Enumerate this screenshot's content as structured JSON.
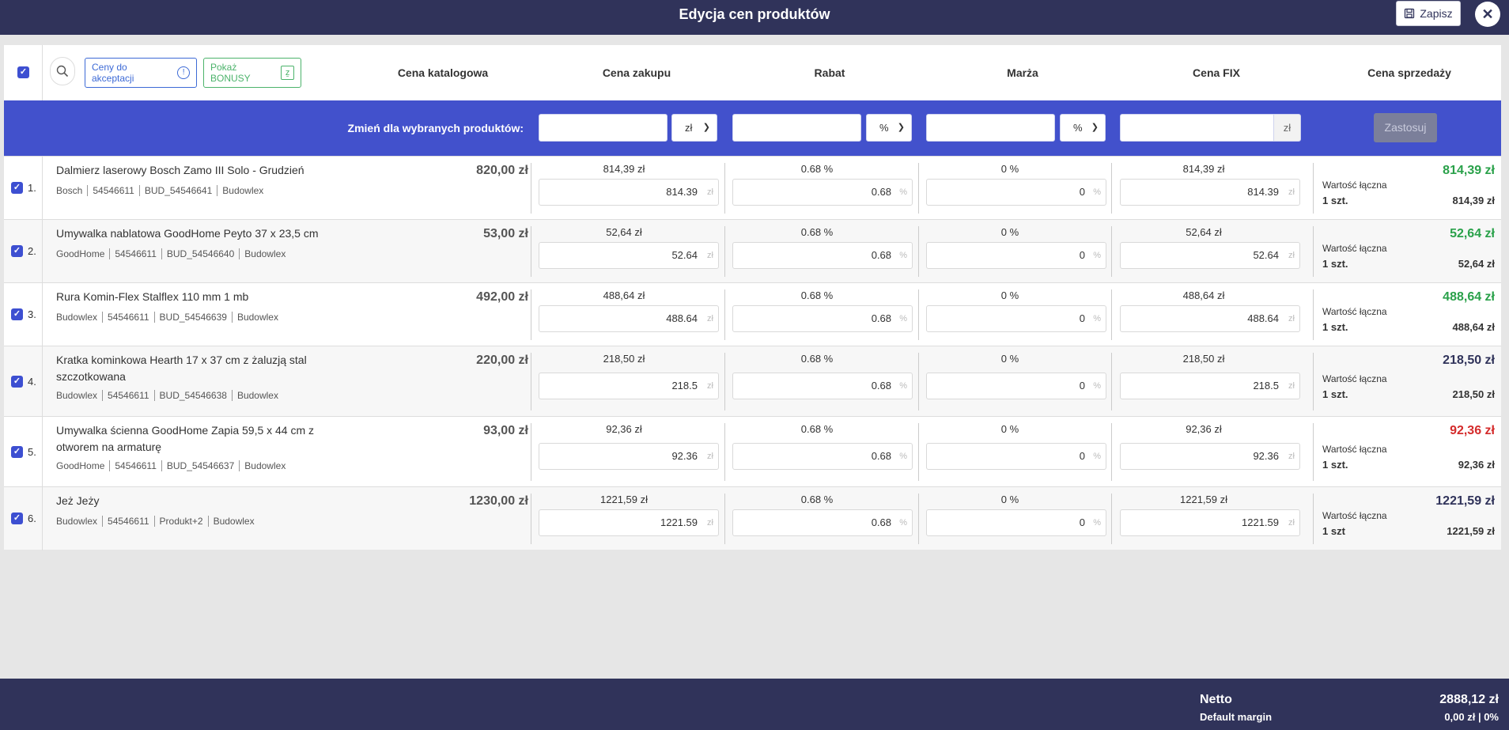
{
  "header": {
    "title": "Edycja cen produktów",
    "save_label": "Zapisz",
    "close_glyph": "✕"
  },
  "toolbar": {
    "pending_prices_label": "Ceny do akceptacji",
    "pending_icon": "!",
    "show_bonus_label": "Pokaż BONUSY",
    "bonus_icon": "ẕ"
  },
  "columns": {
    "catalog": "Cena katalogowa",
    "purchase": "Cena zakupu",
    "discount": "Rabat",
    "margin": "Marża",
    "fix": "Cena FIX",
    "sale": "Cena sprzedaży"
  },
  "bulk": {
    "label": "Zmień dla wybranych produktów:",
    "purchase_unit": "zł",
    "discount_unit": "%",
    "margin_unit": "%",
    "fix_unit": "zł",
    "apply_label": "Zastosuj"
  },
  "colors": {
    "primary": "#4251cc",
    "header_bg": "#30335a",
    "sale_green": "#2aa14a",
    "sale_red": "#d42b2b",
    "sale_dark": "#30335a"
  },
  "rows": [
    {
      "num": "1.",
      "name": "Dalmierz laserowy Bosch Zamo III Solo - Grudzień",
      "meta": [
        "Bosch",
        "54546611",
        "BUD_54546641",
        "Budowlex"
      ],
      "catalog": "820,00 zł",
      "purchase_top": "814,39 zł",
      "purchase_val": "814.39",
      "purchase_unit": "zł",
      "discount_top": "0.68 %",
      "discount_val": "0.68",
      "discount_unit": "%",
      "margin_top": "0 %",
      "margin_val": "0",
      "margin_unit": "%",
      "fix_top": "814,39 zł",
      "fix_val": "814.39",
      "fix_unit": "zł",
      "sale": "814,39 zł",
      "sale_color": "#2aa14a",
      "total_label": "Wartość łączna",
      "qty": "1 szt.",
      "total": "814,39 zł"
    },
    {
      "num": "2.",
      "name": "Umywalka nablatowa GoodHome Peyto 37 x 23,5 cm",
      "meta": [
        "GoodHome",
        "54546611",
        "BUD_54546640",
        "Budowlex"
      ],
      "catalog": "53,00 zł",
      "purchase_top": "52,64 zł",
      "purchase_val": "52.64",
      "purchase_unit": "zł",
      "discount_top": "0.68 %",
      "discount_val": "0.68",
      "discount_unit": "%",
      "margin_top": "0 %",
      "margin_val": "0",
      "margin_unit": "%",
      "fix_top": "52,64 zł",
      "fix_val": "52.64",
      "fix_unit": "zł",
      "sale": "52,64 zł",
      "sale_color": "#2aa14a",
      "total_label": "Wartość łączna",
      "qty": "1 szt.",
      "total": "52,64 zł"
    },
    {
      "num": "3.",
      "name": "Rura Komin-Flex Stalflex 110 mm 1 mb",
      "meta": [
        "Budowlex",
        "54546611",
        "BUD_54546639",
        "Budowlex"
      ],
      "catalog": "492,00 zł",
      "purchase_top": "488,64 zł",
      "purchase_val": "488.64",
      "purchase_unit": "zł",
      "discount_top": "0.68 %",
      "discount_val": "0.68",
      "discount_unit": "%",
      "margin_top": "0 %",
      "margin_val": "0",
      "margin_unit": "%",
      "fix_top": "488,64 zł",
      "fix_val": "488.64",
      "fix_unit": "zł",
      "sale": "488,64 zł",
      "sale_color": "#2aa14a",
      "total_label": "Wartość łączna",
      "qty": "1 szt.",
      "total": "488,64 zł"
    },
    {
      "num": "4.",
      "name": "Kratka kominkowa Hearth 17 x 37 cm z żaluzją stal szczotkowana",
      "meta": [
        "Budowlex",
        "54546611",
        "BUD_54546638",
        "Budowlex"
      ],
      "catalog": "220,00 zł",
      "purchase_top": "218,50 zł",
      "purchase_val": "218.5",
      "purchase_unit": "zł",
      "discount_top": "0.68 %",
      "discount_val": "0.68",
      "discount_unit": "%",
      "margin_top": "0 %",
      "margin_val": "0",
      "margin_unit": "%",
      "fix_top": "218,50 zł",
      "fix_val": "218.5",
      "fix_unit": "zł",
      "sale": "218,50 zł",
      "sale_color": "#30335a",
      "total_label": "Wartość łączna",
      "qty": "1 szt.",
      "total": "218,50 zł"
    },
    {
      "num": "5.",
      "name": "Umywalka ścienna GoodHome Zapia 59,5 x 44 cm z otworem na armaturę",
      "meta": [
        "GoodHome",
        "54546611",
        "BUD_54546637",
        "Budowlex"
      ],
      "catalog": "93,00 zł",
      "purchase_top": "92,36 zł",
      "purchase_val": "92.36",
      "purchase_unit": "zł",
      "discount_top": "0.68 %",
      "discount_val": "0.68",
      "discount_unit": "%",
      "margin_top": "0 %",
      "margin_val": "0",
      "margin_unit": "%",
      "fix_top": "92,36 zł",
      "fix_val": "92.36",
      "fix_unit": "zł",
      "sale": "92,36 zł",
      "sale_color": "#d42b2b",
      "total_label": "Wartość łączna",
      "qty": "1 szt.",
      "total": "92,36 zł"
    },
    {
      "num": "6.",
      "name": "Jeż Jeży",
      "meta": [
        "Budowlex",
        "54546611",
        "Produkt+2",
        "Budowlex"
      ],
      "catalog": "1230,00 zł",
      "purchase_top": "1221,59 zł",
      "purchase_val": "1221.59",
      "purchase_unit": "zł",
      "discount_top": "0.68 %",
      "discount_val": "0.68",
      "discount_unit": "%",
      "margin_top": "0 %",
      "margin_val": "0",
      "margin_unit": "%",
      "fix_top": "1221,59 zł",
      "fix_val": "1221.59",
      "fix_unit": "zł",
      "sale": "1221,59 zł",
      "sale_color": "#30335a",
      "total_label": "Wartość łączna",
      "qty": "1 szt",
      "total": "1221,59 zł"
    }
  ],
  "footer": {
    "net_label": "Netto",
    "net_value": "2888,12 zł",
    "margin_label": "Default margin",
    "margin_value": "0,00 zł | 0%"
  }
}
